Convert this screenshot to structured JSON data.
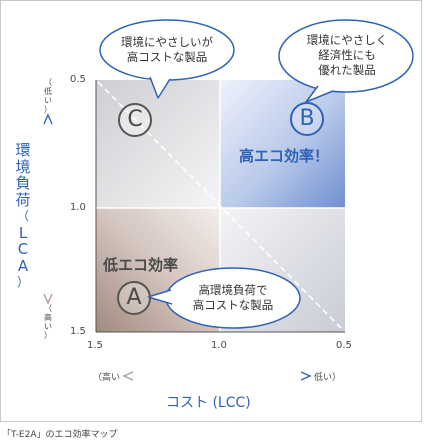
{
  "caption": "「T-E2A」のエコ効率マップ",
  "y_axis": {
    "title_chars": [
      "環",
      "境",
      "負",
      "荷",
      "（",
      "L",
      "C",
      "A",
      "）"
    ],
    "low_label_chars": [
      "（",
      "低",
      "い",
      "）"
    ],
    "high_label_chars": [
      "（",
      "高",
      "い",
      "）"
    ],
    "ticks": [
      "0.5",
      "1.0",
      "1.5"
    ]
  },
  "x_axis": {
    "title": "コスト (LCC)",
    "high_label": "（高い",
    "low_label": "低い）",
    "ticks": [
      "1.5",
      "1.0",
      "0.5"
    ]
  },
  "quadrants": {
    "a": {
      "letter": "A",
      "title": "低エコ効率",
      "bubble": [
        "高環境負荷で",
        "高コストな製品"
      ]
    },
    "b": {
      "letter": "B",
      "title": "高エコ効率！",
      "bubble": [
        "環境にやさしく",
        "経済性にも",
        "優れた製品"
      ]
    },
    "c": {
      "letter": "C",
      "bubble": [
        "環境にやさしいが",
        "高コストな製品"
      ]
    }
  },
  "colors": {
    "blue_accent": "#2f63b8",
    "brown_quadrant": "#a79086",
    "blue_quadrant": "#7d9ad3"
  }
}
